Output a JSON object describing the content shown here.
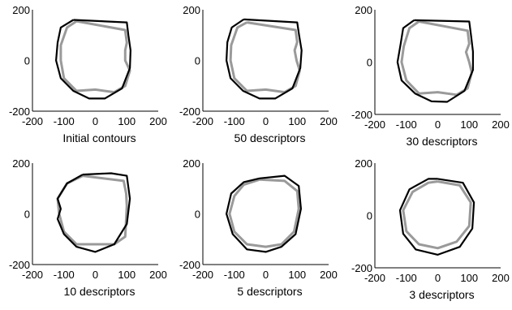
{
  "chart_data": [
    {
      "type": "line",
      "caption": "Initial contours",
      "xlim": [
        -200,
        200
      ],
      "ylim": [
        -200,
        200
      ],
      "xticks": [
        "-200",
        "-100",
        "0",
        "100",
        "200"
      ],
      "yticks": [
        "200",
        "0",
        "-200"
      ],
      "series": [
        {
          "color": "#9a9a9a",
          "x": [
            -60,
            95,
            100,
            95,
            95,
            110,
            95,
            60,
            0,
            -60,
            -100,
            -110,
            -110,
            -90,
            -60
          ],
          "y": [
            155,
            120,
            70,
            40,
            0,
            -40,
            -100,
            -125,
            -115,
            -120,
            -70,
            0,
            60,
            130,
            155
          ]
        },
        {
          "color": "#000000",
          "x": [
            -70,
            100,
            105,
            112,
            110,
            85,
            30,
            -20,
            -70,
            -110,
            -125,
            -120,
            -110,
            -70
          ],
          "y": [
            160,
            150,
            100,
            40,
            -30,
            -110,
            -150,
            -150,
            -120,
            -70,
            0,
            70,
            130,
            160
          ]
        }
      ]
    },
    {
      "type": "line",
      "caption": "50 descriptors",
      "xlim": [
        -200,
        200
      ],
      "ylim": [
        -200,
        200
      ],
      "xticks": [
        "-200",
        "-100",
        "0",
        "100",
        "200"
      ],
      "yticks": [
        "200",
        "0",
        "-200"
      ],
      "series": [
        {
          "color": "#9a9a9a",
          "x": [
            -60,
            95,
            100,
            92,
            98,
            108,
            95,
            60,
            0,
            -60,
            -100,
            -112,
            -110,
            -90,
            -60
          ],
          "y": [
            150,
            120,
            72,
            40,
            0,
            -40,
            -100,
            -125,
            -115,
            -120,
            -70,
            0,
            60,
            130,
            150
          ]
        },
        {
          "color": "#000000",
          "x": [
            -70,
            100,
            106,
            114,
            110,
            85,
            30,
            -20,
            -72,
            -112,
            -125,
            -122,
            -108,
            -70
          ],
          "y": [
            162,
            150,
            100,
            40,
            -30,
            -110,
            -150,
            -150,
            -120,
            -70,
            0,
            72,
            130,
            162
          ]
        }
      ]
    },
    {
      "type": "line",
      "caption": "30 descriptors",
      "xlim": [
        -200,
        200
      ],
      "ylim": [
        -200,
        200
      ],
      "xticks": [
        "-200",
        "-100",
        "0",
        "100",
        "200"
      ],
      "yticks": [
        "200",
        "0",
        "-200"
      ],
      "series": [
        {
          "color": "#9a9a9a",
          "x": [
            -60,
            95,
            100,
            90,
            100,
            108,
            95,
            60,
            0,
            -60,
            -100,
            -115,
            -108,
            -90,
            -60
          ],
          "y": [
            155,
            120,
            70,
            38,
            0,
            -40,
            -100,
            -125,
            -115,
            -120,
            -70,
            0,
            60,
            130,
            155
          ]
        },
        {
          "color": "#000000",
          "x": [
            -75,
            100,
            106,
            112,
            112,
            85,
            30,
            -20,
            -72,
            -115,
            -128,
            -118,
            -110,
            -75
          ],
          "y": [
            160,
            155,
            100,
            40,
            -30,
            -110,
            -152,
            -150,
            -120,
            -70,
            0,
            70,
            130,
            160
          ]
        }
      ]
    },
    {
      "type": "line",
      "caption": "10 descriptors",
      "xlim": [
        -200,
        200
      ],
      "ylim": [
        -200,
        200
      ],
      "xticks": [
        "-200",
        "-100",
        "0",
        "100",
        "200"
      ],
      "yticks": [
        "200",
        "0",
        "-200"
      ],
      "series": [
        {
          "color": "#9a9a9a",
          "x": [
            -40,
            90,
            98,
            100,
            98,
            95,
            60,
            0,
            -60,
            -100,
            -115,
            -120,
            -90,
            -40
          ],
          "y": [
            150,
            130,
            80,
            30,
            -20,
            -90,
            -120,
            -120,
            -120,
            -70,
            0,
            60,
            120,
            150
          ]
        },
        {
          "color": "#000000",
          "x": [
            -40,
            50,
            100,
            110,
            100,
            60,
            0,
            -60,
            -100,
            -120,
            -110,
            -120,
            -90,
            -40
          ],
          "y": [
            155,
            160,
            150,
            60,
            -40,
            -120,
            -150,
            -130,
            -80,
            -20,
            20,
            60,
            120,
            155
          ]
        }
      ]
    },
    {
      "type": "line",
      "caption": "5 descriptors",
      "xlim": [
        -200,
        200
      ],
      "ylim": [
        -200,
        200
      ],
      "xticks": [
        "-200",
        "-100",
        "0",
        "100",
        "200"
      ],
      "yticks": [
        "200",
        "0",
        "-200"
      ],
      "series": [
        {
          "color": "#9a9a9a",
          "x": [
            -20,
            60,
            100,
            105,
            90,
            50,
            0,
            -60,
            -100,
            -115,
            -100,
            -70,
            -20
          ],
          "y": [
            135,
            130,
            90,
            20,
            -70,
            -120,
            -130,
            -120,
            -70,
            0,
            70,
            115,
            135
          ]
        },
        {
          "color": "#000000",
          "x": [
            -20,
            60,
            105,
            112,
            95,
            50,
            0,
            -60,
            -105,
            -125,
            -110,
            -70,
            -20
          ],
          "y": [
            140,
            150,
            110,
            20,
            -80,
            -130,
            -150,
            -140,
            -80,
            0,
            80,
            125,
            140
          ]
        }
      ]
    },
    {
      "type": "line",
      "caption": "3 descriptors",
      "xlim": [
        -200,
        200
      ],
      "ylim": [
        -200,
        200
      ],
      "xticks": [
        "-200",
        "-100",
        "0",
        "100",
        "200"
      ],
      "yticks": [
        "200",
        "0",
        "-200"
      ],
      "series": [
        {
          "color": "#9a9a9a",
          "x": [
            0,
            70,
            105,
            100,
            60,
            0,
            -60,
            -100,
            -110,
            -80,
            -30,
            0
          ],
          "y": [
            130,
            115,
            50,
            -40,
            -100,
            -125,
            -110,
            -60,
            20,
            90,
            125,
            130
          ]
        },
        {
          "color": "#000000",
          "x": [
            0,
            80,
            115,
            110,
            70,
            0,
            -70,
            -110,
            -120,
            -90,
            -30,
            0
          ],
          "y": [
            140,
            125,
            50,
            -50,
            -120,
            -150,
            -130,
            -70,
            20,
            100,
            140,
            140
          ]
        }
      ]
    }
  ]
}
